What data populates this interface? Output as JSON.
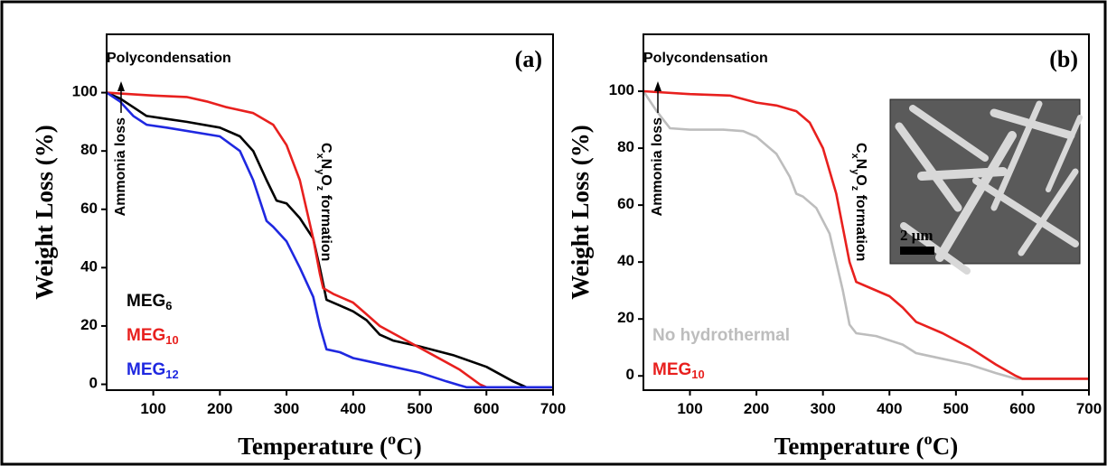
{
  "chart_data": [
    {
      "type": "line",
      "label": "(a)",
      "xlabel": "Temperature (oC)",
      "ylabel": "Weight Loss (%)",
      "annotations": [
        "Polycondensation",
        "Ammonia loss",
        "CxNyOz formation"
      ],
      "xlim": [
        30,
        700
      ],
      "ylim": [
        -2,
        120
      ],
      "xticks": [
        100,
        200,
        300,
        400,
        500,
        600,
        700
      ],
      "yticks": [
        0,
        20,
        40,
        60,
        80,
        100
      ],
      "legend": "lower left",
      "series": [
        {
          "name": "MEG6",
          "color": "#000000",
          "x": [
            30,
            50,
            70,
            90,
            120,
            150,
            200,
            230,
            250,
            270,
            285,
            300,
            320,
            340,
            350,
            360,
            380,
            400,
            420,
            440,
            460,
            500,
            550,
            600,
            640,
            660,
            700
          ],
          "values": [
            100,
            98,
            95,
            92,
            91,
            90,
            88,
            85,
            80,
            70,
            63,
            62,
            57,
            50,
            40,
            29,
            27,
            25,
            22,
            17,
            15,
            13,
            10,
            6,
            1,
            -1,
            -1
          ]
        },
        {
          "name": "MEG10",
          "color": "#e8201e",
          "x": [
            30,
            100,
            150,
            180,
            210,
            250,
            280,
            300,
            320,
            340,
            350,
            355,
            370,
            400,
            420,
            440,
            480,
            520,
            560,
            590,
            600,
            700
          ],
          "values": [
            100,
            99,
            98.5,
            97,
            95,
            93,
            89,
            82,
            70,
            50,
            38,
            33,
            31,
            28,
            24,
            20,
            15,
            10,
            5,
            0,
            -1,
            -1
          ]
        },
        {
          "name": "MEG12",
          "color": "#1f28e0",
          "x": [
            30,
            50,
            70,
            90,
            120,
            200,
            230,
            250,
            270,
            280,
            300,
            320,
            340,
            350,
            360,
            380,
            400,
            420,
            460,
            500,
            540,
            570,
            700
          ],
          "values": [
            100,
            97,
            92,
            89,
            88,
            85,
            80,
            70,
            56,
            54,
            49,
            40,
            30,
            20,
            12,
            11,
            9,
            8,
            6,
            4,
            1,
            -1,
            -1
          ]
        }
      ]
    },
    {
      "type": "line",
      "label": "(b)",
      "xlabel": "Temperature (oC)",
      "ylabel": "Weight Loss (%)",
      "annotations": [
        "Polycondensation",
        "Ammonia loss",
        "CxNyOz formation"
      ],
      "inset_label": "2 μm",
      "xlim": [
        30,
        700
      ],
      "ylim": [
        -5,
        120
      ],
      "xticks": [
        100,
        200,
        300,
        400,
        500,
        600,
        700
      ],
      "yticks": [
        0,
        20,
        40,
        60,
        80,
        100
      ],
      "legend": "lower left",
      "series": [
        {
          "name": "No hydrothermal",
          "color": "#bdbdbd",
          "x": [
            30,
            50,
            70,
            100,
            150,
            180,
            200,
            230,
            250,
            260,
            270,
            290,
            310,
            330,
            340,
            350,
            380,
            420,
            440,
            480,
            520,
            560,
            590,
            700
          ],
          "values": [
            100,
            93,
            87,
            86.5,
            86.5,
            86,
            84,
            78,
            70,
            64,
            63,
            59,
            50,
            30,
            18,
            15,
            14,
            11,
            8,
            6,
            4,
            1,
            -1,
            -1
          ]
        },
        {
          "name": "MEG10",
          "color": "#e8201e",
          "x": [
            30,
            100,
            160,
            200,
            230,
            260,
            280,
            300,
            320,
            340,
            350,
            370,
            400,
            420,
            440,
            480,
            520,
            560,
            590,
            600,
            700
          ],
          "values": [
            100,
            99,
            98.5,
            96,
            95,
            93,
            89,
            80,
            64,
            40,
            33,
            31,
            28,
            24,
            19,
            15,
            10,
            4,
            0,
            -1,
            -1
          ]
        }
      ]
    }
  ]
}
